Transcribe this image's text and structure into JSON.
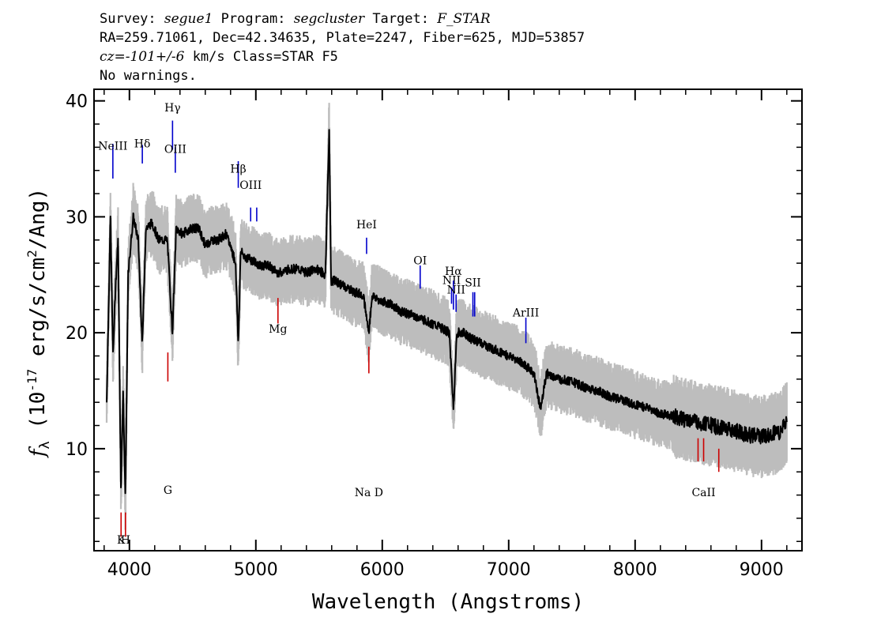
{
  "header": {
    "line1": [
      {
        "text": "Survey: ",
        "italic": false
      },
      {
        "text": "segue1",
        "italic": true
      },
      {
        "text": " Program: ",
        "italic": false
      },
      {
        "text": "segcluster",
        "italic": true
      },
      {
        "text": " Target: ",
        "italic": false
      },
      {
        "text": "F_STAR",
        "italic": true
      }
    ],
    "line2": "RA=259.71061, Dec=42.34635, Plate=2247, Fiber=625, MJD=53857",
    "line3": [
      {
        "text": "cz=-101+/-6",
        "italic": true
      },
      {
        "text": " km/s Class=STAR F5",
        "italic": false
      }
    ],
    "line4": "No warnings."
  },
  "colors": {
    "spectrum": "#000000",
    "error_band": "#bdbdbd",
    "emission_lines": "#0000cc",
    "absorption_lines": "#cc0000"
  },
  "chart_data": {
    "type": "line",
    "xlabel": "Wavelength (Angstroms)",
    "ylabel_symbol": "f",
    "ylabel_subscript": "λ",
    "ylabel_text": "(10",
    "ylabel_exp": "-17",
    "ylabel_rest": "erg/s/cm",
    "ylabel_exp2": "2",
    "ylabel_end": "/Ang)",
    "xlim": [
      3720,
      9320
    ],
    "ylim": [
      1.2,
      41.0
    ],
    "xticks": [
      4000,
      5000,
      6000,
      7000,
      8000,
      9000
    ],
    "yticks": [
      10,
      20,
      30,
      40
    ],
    "series": [
      {
        "name": "",
        "x": [
          3820,
          3850,
          3870,
          3890,
          3910,
          3933,
          3950,
          3968,
          3990,
          4030,
          4070,
          4102,
          4130,
          4180,
          4230,
          4300,
          4340,
          4370,
          4420,
          4480,
          4550,
          4600,
          4650,
          4700,
          4760,
          4800,
          4840,
          4861,
          4880,
          4920,
          4980,
          5030,
          5100,
          5170,
          5200,
          5260,
          5330,
          5400,
          5480,
          5550,
          5580,
          5595,
          5620,
          5700,
          5780,
          5850,
          5893,
          5920,
          5980,
          6060,
          6150,
          6250,
          6350,
          6450,
          6530,
          6563,
          6590,
          6650,
          6700,
          6800,
          6900,
          7000,
          7100,
          7200,
          7250,
          7300,
          7400,
          7500,
          7600,
          7700,
          7800,
          7900,
          8000,
          8100,
          8200,
          8300,
          8400,
          8500,
          8600,
          8700,
          8800,
          8900,
          9000,
          9100,
          9150,
          9200
        ],
        "y": [
          14,
          30,
          18,
          24,
          28,
          6.5,
          15,
          5.5,
          25,
          30,
          28,
          19,
          29,
          29.5,
          28,
          28,
          20,
          29,
          28.5,
          29,
          29,
          27.5,
          28,
          28,
          28.5,
          27.5,
          26,
          19,
          27,
          26.5,
          26.2,
          25.8,
          25.8,
          25.2,
          25.2,
          25.5,
          25.5,
          25.2,
          25.5,
          25,
          37.5,
          24.5,
          24.5,
          24,
          23.5,
          23.3,
          20,
          23.2,
          22.8,
          22.5,
          21.8,
          21.5,
          21,
          20.5,
          20,
          13.5,
          20,
          20,
          19.5,
          19,
          18.5,
          18,
          17.5,
          16.5,
          13.5,
          16.5,
          16,
          15.8,
          15.3,
          15,
          14.5,
          14.2,
          13.8,
          13.5,
          13,
          12.8,
          12.5,
          12.3,
          12,
          11.8,
          11.5,
          11.2,
          11,
          11.3,
          11.5,
          12.2
        ]
      }
    ],
    "emission_lines": [
      {
        "label": "NeIII",
        "wave": 3869,
        "label_y": 35.8,
        "y_top": 36.3,
        "y_bot": 33.3
      },
      {
        "label": "Hδ",
        "wave": 4102,
        "label_y": 36.0,
        "y_top": 36.2,
        "y_bot": 34.6
      },
      {
        "label": "Hγ",
        "wave": 4341,
        "label_y": 39.1,
        "y_top": 38.3,
        "y_bot": 35.8
      },
      {
        "label": "OIII",
        "wave": 4363,
        "label_y": 35.5,
        "y_top": 36.0,
        "y_bot": 33.8
      },
      {
        "label": "Hβ",
        "wave": 4861,
        "label_y": 33.8,
        "y_top": 34.8,
        "y_bot": 32.5
      },
      {
        "label": "OIII",
        "wave": 4959,
        "label_y": 32.4,
        "y_top": 30.8,
        "y_bot": 29.6
      },
      {
        "label": "",
        "wave": 5007,
        "label_y": 0,
        "y_top": 30.8,
        "y_bot": 29.6
      },
      {
        "label": "HeI",
        "wave": 5876,
        "label_y": 29.0,
        "y_top": 28.2,
        "y_bot": 26.8
      },
      {
        "label": "OI",
        "wave": 6300,
        "label_y": 25.9,
        "y_top": 25.8,
        "y_bot": 23.8
      },
      {
        "label": "NII",
        "wave": 6548,
        "label_y": 24.2,
        "y_top": 23.9,
        "y_bot": 22.5
      },
      {
        "label": "Hα",
        "wave": 6563,
        "label_y": 25.0,
        "y_top": 24.5,
        "y_bot": 22.0
      },
      {
        "label": "NII",
        "wave": 6584,
        "label_y": 23.4,
        "y_top": 23.3,
        "y_bot": 21.8
      },
      {
        "label": "SII",
        "wave": 6717,
        "label_y": 24.0,
        "y_top": 23.5,
        "y_bot": 21.4
      },
      {
        "label": "",
        "wave": 6731,
        "label_y": 0,
        "y_top": 23.5,
        "y_bot": 21.4
      },
      {
        "label": "ArIII",
        "wave": 7136,
        "label_y": 21.4,
        "y_top": 21.3,
        "y_bot": 19.1
      }
    ],
    "absorption_lines": [
      {
        "label": "K",
        "wave": 3934,
        "label_y": 1.8,
        "y_top": 4.5,
        "y_bot": 2.4
      },
      {
        "label": "H",
        "wave": 3969,
        "label_y": 1.8,
        "y_top": 4.5,
        "y_bot": 2.4
      },
      {
        "label": "G",
        "wave": 4304,
        "label_y": 6.1,
        "y_top": 18.3,
        "y_bot": 15.8
      },
      {
        "label": "Mg",
        "wave": 5175,
        "label_y": 20.0,
        "y_top": 23.0,
        "y_bot": 20.8
      },
      {
        "label": "Na D",
        "wave": 5894,
        "label_y": 5.9,
        "y_top": 18.8,
        "y_bot": 16.5
      },
      {
        "label": "",
        "wave": 8498,
        "label_y": 0,
        "y_top": 10.9,
        "y_bot": 8.9
      },
      {
        "label": "CaII",
        "wave": 8542,
        "label_y": 5.9,
        "y_top": 10.9,
        "y_bot": 8.9
      },
      {
        "label": "",
        "wave": 8662,
        "label_y": 0,
        "y_top": 10.0,
        "y_bot": 8.0
      }
    ]
  }
}
